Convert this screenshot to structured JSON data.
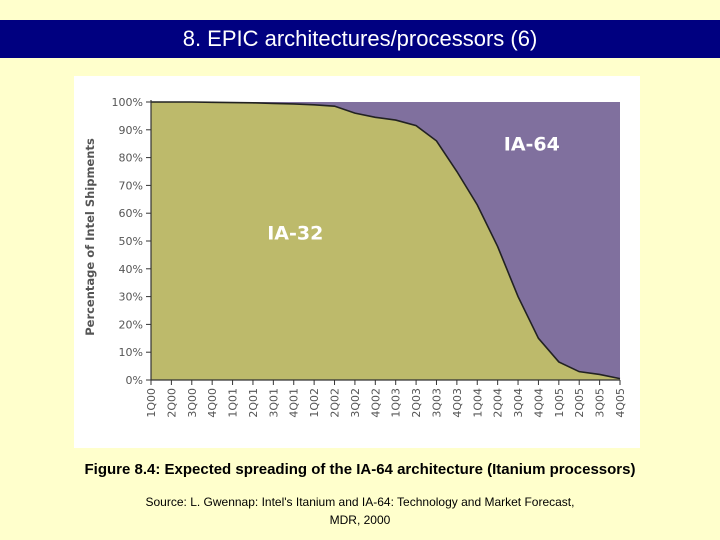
{
  "slide": {
    "title": "8. EPIC architectures/processors (6)",
    "caption": "Figure 8.4: Expected spreading of the IA-64 architecture (Itanium processors)",
    "source_line1": "Source: L. Gwennap: Intel's Itanium and IA-64: Technology and Market Forecast,",
    "source_line2": "MDR, 2000"
  },
  "chart_data": {
    "type": "area",
    "title": "",
    "xlabel": "",
    "ylabel": "Percentage of Intel Shipments",
    "ylim": [
      0,
      100
    ],
    "yticks": [
      "0%",
      "10%",
      "20%",
      "30%",
      "40%",
      "50%",
      "60%",
      "70%",
      "80%",
      "90%",
      "100%"
    ],
    "categories": [
      "1Q00",
      "2Q00",
      "3Q00",
      "4Q00",
      "1Q01",
      "2Q01",
      "3Q01",
      "4Q01",
      "1Q02",
      "2Q02",
      "3Q02",
      "4Q02",
      "1Q03",
      "2Q03",
      "3Q03",
      "4Q03",
      "1Q04",
      "2Q04",
      "3Q04",
      "4Q04",
      "1Q05",
      "2Q05",
      "3Q05",
      "4Q05"
    ],
    "series": [
      {
        "name": "IA-32",
        "color": "#bdba6b",
        "values": [
          100,
          100,
          100,
          99.9,
          99.8,
          99.7,
          99.5,
          99.3,
          99,
          98.5,
          96,
          94.5,
          93.5,
          91.5,
          86,
          75,
          63,
          48,
          30,
          15,
          6.5,
          3,
          2,
          0.5
        ]
      },
      {
        "name": "IA-64",
        "color": "#80709e",
        "values": [
          0,
          0,
          0,
          0.1,
          0.2,
          0.3,
          0.5,
          0.7,
          1,
          1.5,
          4,
          5.5,
          6.5,
          8.5,
          14,
          25,
          37,
          52,
          70,
          85,
          93.5,
          97,
          98,
          99.5
        ]
      }
    ],
    "region_labels": [
      "IA-32",
      "IA-64"
    ]
  }
}
